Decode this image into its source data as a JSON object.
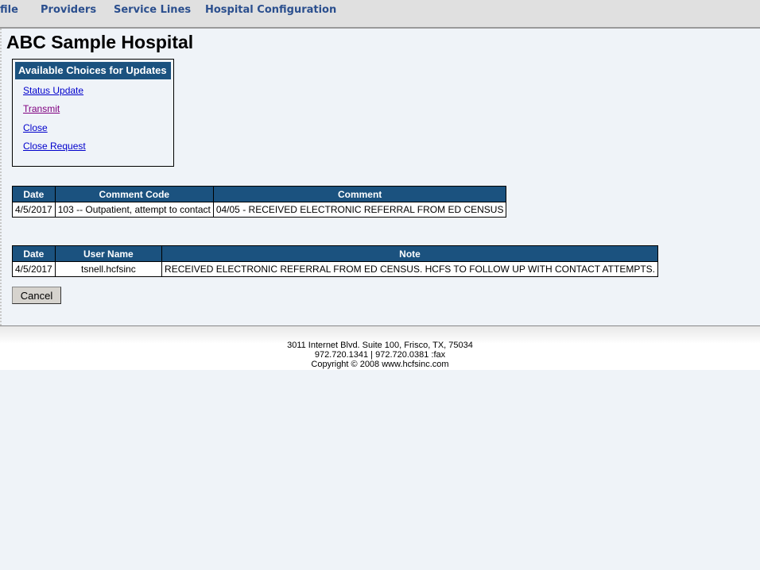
{
  "nav": {
    "items": [
      "file",
      "Providers",
      "Service Lines",
      "Hospital Configuration"
    ]
  },
  "page_title": "ABC Sample Hospital",
  "choices": {
    "title": "Available Choices for Updates",
    "items": [
      "Status Update",
      "Transmit",
      "Close",
      "Close Request"
    ]
  },
  "comments_table": {
    "headers": [
      "Date",
      "Comment Code",
      "Comment"
    ],
    "rows": [
      [
        "4/5/2017",
        "103 -- Outpatient, attempt to contact",
        "04/05 - RECEIVED ELECTRONIC REFERRAL FROM ED CENSUS"
      ]
    ]
  },
  "notes_table": {
    "headers": [
      "Date",
      "User Name",
      "Note"
    ],
    "rows": [
      [
        "4/5/2017",
        "tsnell.hcfsinc",
        "RECEIVED ELECTRONIC REFERRAL FROM ED CENSUS. HCFS TO FOLLOW UP WITH CONTACT ATTEMPTS."
      ]
    ]
  },
  "cancel_label": "Cancel",
  "footer": {
    "address": "3011 Internet Blvd. Suite 100, Frisco, TX, 75034",
    "phone": "972.720.1341 | 972.720.0381 :fax",
    "copyright": "Copyright © 2008 www.hcfsinc.com"
  }
}
